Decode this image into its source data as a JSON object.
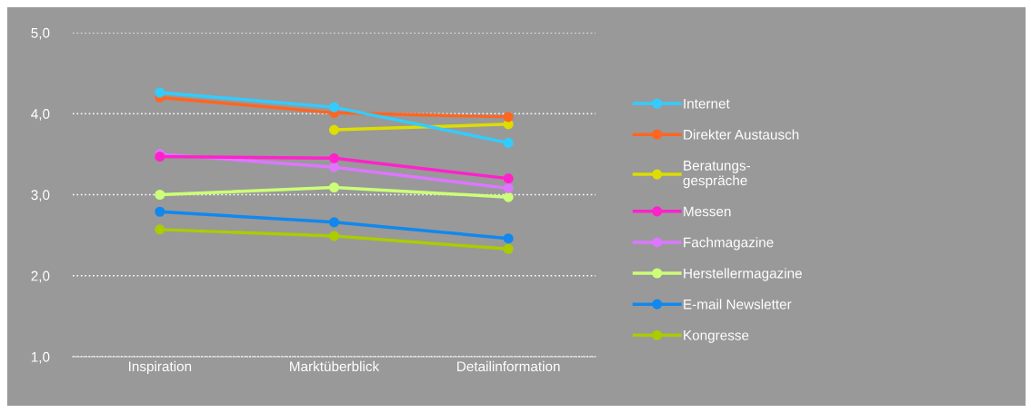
{
  "chart_data": {
    "type": "line",
    "categories": [
      "Inspiration",
      "Marktüberblick",
      "Detailinformation"
    ],
    "series": [
      {
        "name": "Internet",
        "color": "#33ccff",
        "values": [
          4.26,
          4.08,
          3.64
        ]
      },
      {
        "name": "Direkter Austausch",
        "color": "#ff6622",
        "values": [
          4.2,
          4.01,
          3.96
        ]
      },
      {
        "name": "Beratungs-\ngespräche",
        "color": "#dddd00",
        "values": [
          null,
          3.8,
          3.87
        ]
      },
      {
        "name": "Messen",
        "color": "#ff22cc",
        "values": [
          3.47,
          3.45,
          3.2
        ]
      },
      {
        "name": "Fachmagazine",
        "color": "#dd77ff",
        "values": [
          3.5,
          3.34,
          3.08
        ]
      },
      {
        "name": "Herstellermagazine",
        "color": "#ccff77",
        "values": [
          3.0,
          3.09,
          2.97
        ]
      },
      {
        "name": "E-mail Newsletter",
        "color": "#1188ee",
        "values": [
          2.79,
          2.66,
          2.46
        ]
      },
      {
        "name": "Kongresse",
        "color": "#aacc00",
        "values": [
          2.57,
          2.49,
          2.33
        ]
      }
    ],
    "ylim": [
      1,
      5
    ],
    "yticks": [
      {
        "value": 1,
        "label": "1,0"
      },
      {
        "value": 2,
        "label": "2,0"
      },
      {
        "value": 3,
        "label": "3,0"
      },
      {
        "value": 4,
        "label": "4,0"
      },
      {
        "value": 5,
        "label": "5,0"
      }
    ],
    "grid": "y",
    "legend": "right",
    "marker": "circle",
    "line_style": "solid"
  }
}
